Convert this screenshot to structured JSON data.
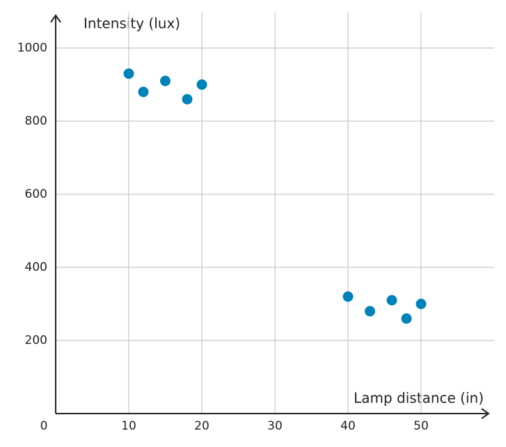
{
  "chart_data": {
    "type": "scatter",
    "x_label": "Lamp distance (in)",
    "y_label": "Intensity (lux)",
    "x": [
      10,
      12,
      15,
      18,
      20,
      40,
      43,
      46,
      48,
      50
    ],
    "series": [
      {
        "color": "#0082b8",
        "values": [
          930,
          880,
          910,
          860,
          900,
          320,
          280,
          310,
          260,
          300
        ]
      }
    ],
    "xlim": [
      0,
      59
    ],
    "ylim": [
      0,
      1090
    ],
    "xticks": [
      0,
      10,
      20,
      30,
      40,
      50
    ],
    "yticks": [
      200,
      400,
      600,
      800,
      1000
    ],
    "grid": true
  }
}
